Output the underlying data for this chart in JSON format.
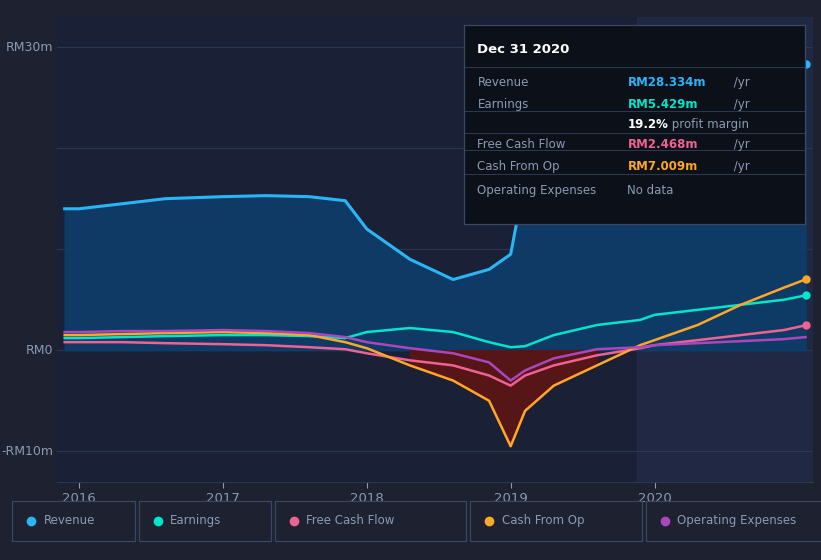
{
  "bg_color": "#1d2130",
  "chart_bg": "#1a2035",
  "text_color": "#8a9bb5",
  "white": "#ffffff",
  "grid_color": "#2a3550",
  "ylabel_rm30": "RM30m",
  "ylabel_rm0": "RM0",
  "ylabel_rmneg10": "-RM10m",
  "years": [
    2015.9,
    2016.0,
    2016.3,
    2016.6,
    2017.0,
    2017.3,
    2017.6,
    2017.85,
    2018.0,
    2018.3,
    2018.6,
    2018.85,
    2019.0,
    2019.1,
    2019.3,
    2019.6,
    2019.9,
    2020.0,
    2020.3,
    2020.6,
    2020.9,
    2021.05
  ],
  "revenue": [
    14.0,
    14.0,
    14.5,
    15.0,
    15.2,
    15.3,
    15.2,
    14.8,
    12.0,
    9.0,
    7.0,
    8.0,
    9.5,
    17.0,
    19.5,
    20.5,
    21.5,
    22.0,
    23.5,
    25.5,
    27.5,
    28.33
  ],
  "earnings": [
    1.2,
    1.2,
    1.3,
    1.4,
    1.5,
    1.5,
    1.4,
    1.2,
    1.8,
    2.2,
    1.8,
    0.8,
    0.3,
    0.4,
    1.5,
    2.5,
    3.0,
    3.5,
    4.0,
    4.5,
    5.0,
    5.43
  ],
  "free_cash_flow": [
    0.8,
    0.8,
    0.8,
    0.7,
    0.6,
    0.5,
    0.3,
    0.1,
    -0.3,
    -1.0,
    -1.5,
    -2.5,
    -3.5,
    -2.5,
    -1.5,
    -0.5,
    0.2,
    0.5,
    1.0,
    1.5,
    2.0,
    2.47
  ],
  "cash_from_op": [
    1.5,
    1.5,
    1.6,
    1.7,
    1.8,
    1.7,
    1.5,
    0.8,
    0.2,
    -1.5,
    -3.0,
    -5.0,
    -9.5,
    -6.0,
    -3.5,
    -1.5,
    0.5,
    1.0,
    2.5,
    4.5,
    6.2,
    7.01
  ],
  "op_expenses": [
    1.8,
    1.8,
    1.9,
    1.9,
    2.0,
    1.9,
    1.7,
    1.3,
    0.8,
    0.2,
    -0.3,
    -1.2,
    -3.0,
    -2.0,
    -0.8,
    0.1,
    0.3,
    0.5,
    0.7,
    0.9,
    1.1,
    1.3
  ],
  "revenue_color": "#29b6f6",
  "earnings_color": "#00e5cc",
  "free_cash_flow_color": "#f06292",
  "cash_from_op_color": "#ffa726",
  "op_expenses_color": "#ab47bc",
  "revenue_fill_color": "#0d3d6b",
  "neg_fill_color": "#5c1515",
  "xlim": [
    2015.85,
    2021.1
  ],
  "ylim": [
    -13,
    33
  ],
  "xticks": [
    2016,
    2017,
    2018,
    2019,
    2020
  ],
  "shade_x0": 2019.88,
  "shade_x1": 2021.1,
  "tooltip_title": "Dec 31 2020",
  "tooltip_rows": [
    {
      "label": "Revenue",
      "value": "RM28.334m",
      "suffix": " /yr",
      "color": "#29b6f6"
    },
    {
      "label": "Earnings",
      "value": "RM5.429m",
      "suffix": " /yr",
      "color": "#00e5cc"
    },
    {
      "label": "Free Cash Flow",
      "value": "RM2.468m",
      "suffix": " /yr",
      "color": "#f06292"
    },
    {
      "label": "Cash From Op",
      "value": "RM7.009m",
      "suffix": " /yr",
      "color": "#ffa726"
    },
    {
      "label": "Operating Expenses",
      "value": "No data",
      "suffix": "",
      "color": "#8a9bb5"
    }
  ],
  "profit_margin_text": "19.2% profit margin",
  "legend_items": [
    {
      "label": "Revenue",
      "color": "#29b6f6"
    },
    {
      "label": "Earnings",
      "color": "#00e5cc"
    },
    {
      "label": "Free Cash Flow",
      "color": "#f06292"
    },
    {
      "label": "Cash From Op",
      "color": "#ffa726"
    },
    {
      "label": "Operating Expenses",
      "color": "#ab47bc"
    }
  ]
}
